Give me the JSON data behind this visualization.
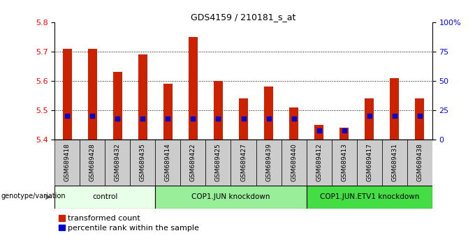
{
  "title": "GDS4159 / 210181_s_at",
  "samples": [
    "GSM689418",
    "GSM689428",
    "GSM689432",
    "GSM689435",
    "GSM689414",
    "GSM689422",
    "GSM689425",
    "GSM689427",
    "GSM689439",
    "GSM689440",
    "GSM689412",
    "GSM689413",
    "GSM689417",
    "GSM689431",
    "GSM689438"
  ],
  "transformed_count": [
    5.71,
    5.71,
    5.63,
    5.69,
    5.59,
    5.75,
    5.6,
    5.54,
    5.58,
    5.51,
    5.45,
    5.44,
    5.54,
    5.61,
    5.54
  ],
  "percentile": [
    20,
    20,
    18,
    18,
    18,
    18,
    18,
    18,
    18,
    18,
    8,
    8,
    20,
    20,
    20
  ],
  "ymin": 5.4,
  "ymax": 5.8,
  "yticks": [
    5.4,
    5.5,
    5.6,
    5.7,
    5.8
  ],
  "right_yticks": [
    0,
    25,
    50,
    75,
    100
  ],
  "groups": [
    {
      "label": "control",
      "start": 0,
      "end": 4,
      "color": "#e8ffe8"
    },
    {
      "label": "COP1.JUN knockdown",
      "start": 4,
      "end": 10,
      "color": "#99ee99"
    },
    {
      "label": "COP1.JUN.ETV1 knockdown",
      "start": 10,
      "end": 15,
      "color": "#44dd44"
    }
  ],
  "bar_color": "#cc2200",
  "percentile_color": "#0000cc",
  "bar_width": 0.35,
  "cell_bg": "#cccccc",
  "cell_border": "#888888",
  "legend_red_label": "transformed count",
  "legend_blue_label": "percentile rank within the sample",
  "xlabel_label": "genotype/variation"
}
